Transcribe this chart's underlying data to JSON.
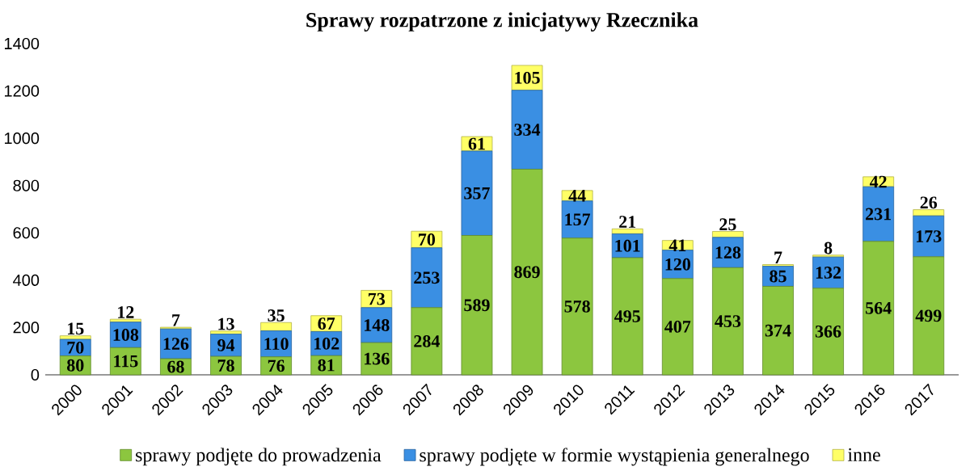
{
  "chart_data": {
    "type": "bar",
    "stacked": true,
    "title": "Sprawy rozpatrzone z inicjatywy Rzecznika",
    "categories": [
      "2000",
      "2001",
      "2002",
      "2003",
      "2004",
      "2005",
      "2006",
      "2007",
      "2008",
      "2009",
      "2010",
      "2011",
      "2012",
      "2013",
      "2014",
      "2015",
      "2016",
      "2017"
    ],
    "series": [
      {
        "name": "sprawy podjęte do prowadzenia",
        "color": "#8cc63f",
        "values": [
          80,
          115,
          68,
          78,
          76,
          81,
          136,
          284,
          589,
          869,
          578,
          495,
          407,
          453,
          374,
          366,
          564,
          499
        ]
      },
      {
        "name": "sprawy podjęte w formie wystąpienia generalnego",
        "color": "#3a8fe3",
        "values": [
          70,
          108,
          126,
          94,
          110,
          102,
          148,
          253,
          357,
          334,
          157,
          101,
          120,
          128,
          85,
          132,
          231,
          173
        ]
      },
      {
        "name": "inne",
        "color": "#ffff66",
        "values": [
          15,
          12,
          7,
          13,
          35,
          67,
          73,
          70,
          61,
          105,
          44,
          21,
          41,
          25,
          7,
          8,
          42,
          26
        ]
      }
    ],
    "ylim": [
      0,
      1400
    ],
    "yticks": [
      0,
      200,
      400,
      600,
      800,
      1000,
      1200,
      1400
    ],
    "legend": "bottom",
    "data_labels": true
  }
}
